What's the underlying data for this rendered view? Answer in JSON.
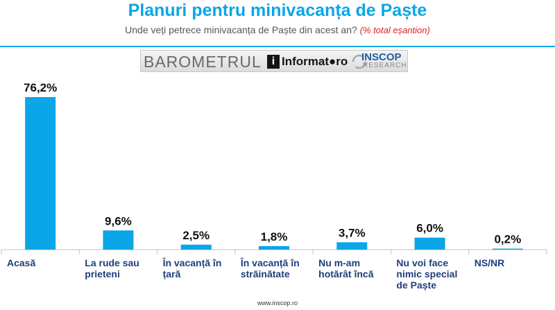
{
  "chart_data": {
    "type": "bar",
    "title": "Planuri pentru minivacanța de Paște",
    "subtitle": "Unde veți petrece minivacanța de Paște din acest an?",
    "subtitle_note": "(% total eșantion)",
    "categories": [
      [
        "Acasă"
      ],
      [
        "La rude sau",
        "prieteni"
      ],
      [
        "În vacanță în",
        "țară"
      ],
      [
        "În vacanță în",
        "străinătate"
      ],
      [
        "Nu m-am",
        "hotărât încă"
      ],
      [
        "Nu voi face",
        "nimic special",
        "de Paște"
      ],
      [
        "NS/NR"
      ]
    ],
    "values": [
      76.2,
      9.6,
      2.5,
      1.8,
      3.7,
      6.0,
      0.2
    ],
    "value_labels": [
      "76,2%",
      "9,6%",
      "2,5%",
      "1,8%",
      "3,7%",
      "6,0%",
      "0,2%"
    ],
    "ylim": [
      0,
      76.2
    ],
    "xlabel": "",
    "ylabel": "",
    "grid": false,
    "colors": {
      "bar": "#0aa6e8",
      "title": "#0aa6e8",
      "axis": "#c0c0c0",
      "note": "#e02020"
    }
  },
  "logos": {
    "barometrul": "BAROMETRUL",
    "informat_icon": "i",
    "informat": "Informat●ro",
    "inscop": "INSCOP",
    "research": "RESEARCH"
  },
  "footer": "www.inscop.ro"
}
